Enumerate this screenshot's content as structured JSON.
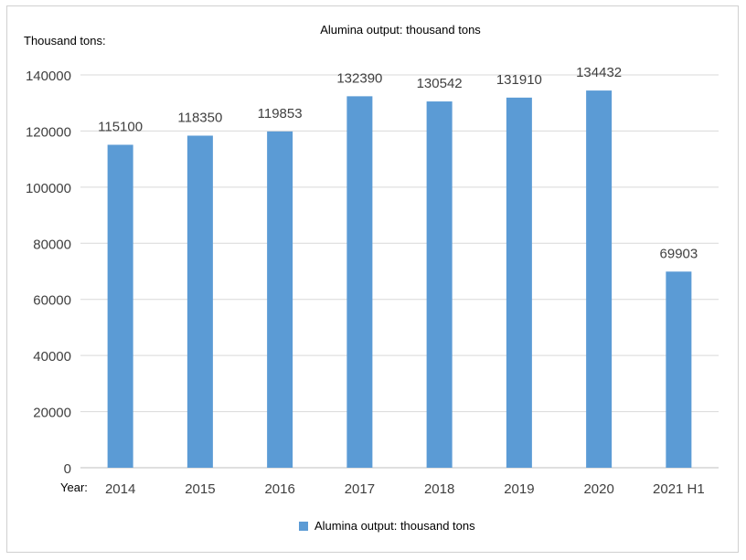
{
  "chart_data": {
    "type": "bar",
    "title": "Alumina output: thousand tons",
    "ylabel": "Thousand tons:",
    "xlabel": "Year:",
    "categories": [
      "2014",
      "2015",
      "2016",
      "2017",
      "2018",
      "2019",
      "2020",
      "2021 H1"
    ],
    "series": [
      {
        "name": "Alumina output: thousand tons",
        "values": [
          115100,
          118350,
          119853,
          132390,
          130542,
          131910,
          134432,
          69903
        ]
      }
    ],
    "ylim": [
      0,
      140000
    ],
    "yticks": [
      0,
      20000,
      40000,
      60000,
      80000,
      100000,
      120000,
      140000
    ],
    "grid": true,
    "legend": "bottom",
    "data_labels": true,
    "bar_color": "#5b9bd5",
    "grid_color": "#d9d9d9",
    "text_color": "#404040"
  }
}
